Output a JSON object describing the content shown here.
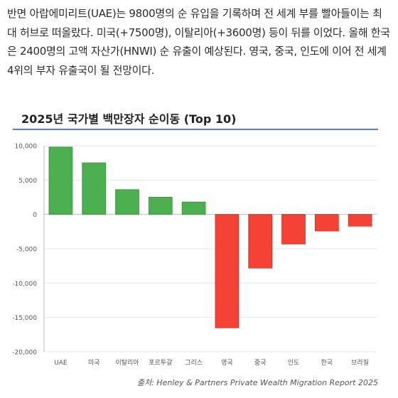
{
  "article": {
    "text": "반면 아랍에미리트(UAE)는 9800명의 순 유입을 기록하며 전 세계 부를 빨아들이는 최대 허브로 떠올랐다. 미국(+7500명), 이탈리아(+3600명) 등이 뒤를 이었다. 올해 한국은 2400명의 고액 자산가(HNWI) 순 유출이 예상된다. 영국, 중국, 인도에 이어 전 세계 4위의 부자 유출국이 될 전망이다."
  },
  "chart_data": {
    "type": "bar",
    "title": "2025년 국가별 백만장자 순이동 (Top 10)",
    "categories": [
      "UAE",
      "미국",
      "이탈리아",
      "포르투갈",
      "그리스",
      "영국",
      "중국",
      "인도",
      "한국",
      "브라질"
    ],
    "values": [
      9800,
      7500,
      3600,
      2500,
      1800,
      -16500,
      -7800,
      -4300,
      -2400,
      -1700
    ],
    "ylim": [
      -20000,
      10000
    ],
    "yticks": [
      10000,
      5000,
      0,
      -5000,
      -10000,
      -15000,
      -20000
    ],
    "ytick_labels": [
      "10,000",
      "5,000",
      "0",
      "-5,000",
      "-10,000",
      "-15,000",
      "-20,000"
    ],
    "grid": true,
    "colors": {
      "positive": "#4caf50",
      "negative": "#f44336",
      "grid": "#e6e6e6",
      "axis": "#bdbdbd"
    },
    "source": "출처: Henley & Partners Private Wealth Migration Report 2025"
  }
}
